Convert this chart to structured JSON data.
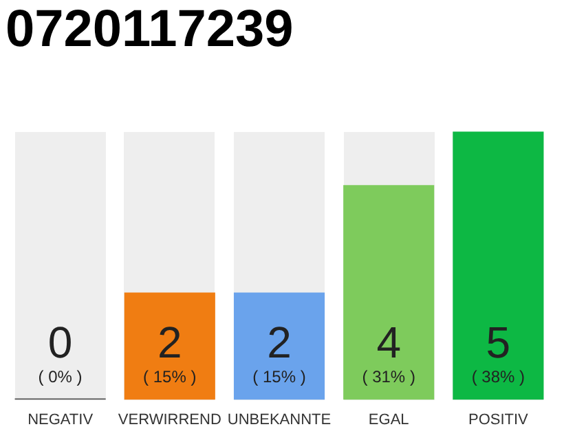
{
  "chart_data": {
    "type": "bar",
    "title": "0720117239",
    "categories": [
      "NEGATIV",
      "VERWIRREND",
      "UNBEKANNTE",
      "EGAL",
      "POSITIV"
    ],
    "values": [
      0,
      2,
      2,
      4,
      5
    ],
    "colors": [
      "#555555",
      "#f07d12",
      "#6aa3ec",
      "#7ecb5c",
      "#0db844"
    ],
    "ylim": [
      0,
      5
    ],
    "tick_labels": "x",
    "grid": false,
    "legend": false,
    "data_labels": true,
    "annotations": [
      "( 0% )",
      "( 15% )",
      "( 15% )",
      "( 31% )",
      "( 38% )"
    ]
  }
}
